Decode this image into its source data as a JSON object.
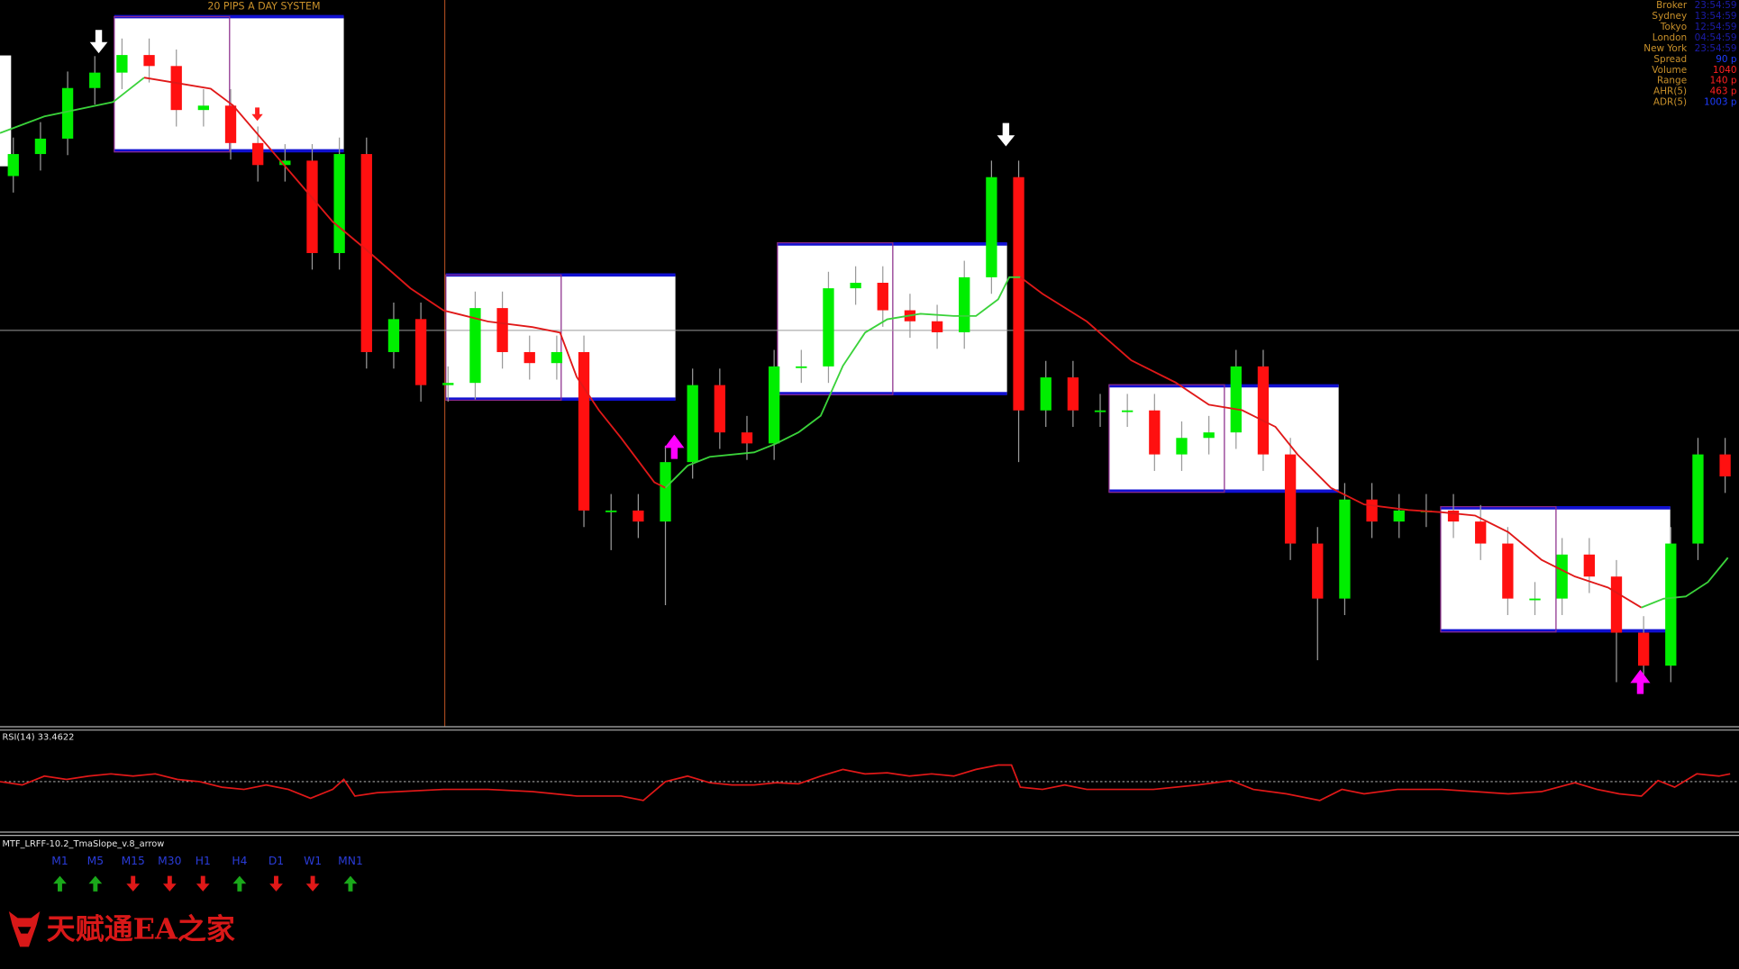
{
  "header": {
    "title": "20 PIPS A DAY SYSTEM"
  },
  "info_panel": [
    {
      "label": "Broker",
      "value": "23:54:59",
      "color": "#1c1ca8"
    },
    {
      "label": "Sydney",
      "value": "13:54:59",
      "color": "#1c1ca8"
    },
    {
      "label": "Tokyo",
      "value": "12:54:59",
      "color": "#1c1ca8"
    },
    {
      "label": "London",
      "value": "04:54:59",
      "color": "#1c1ca8"
    },
    {
      "label": "New York",
      "value": "23:54:59",
      "color": "#1c1ca8"
    },
    {
      "label": "Spread",
      "value": "90 p",
      "color": "#1e3cff"
    },
    {
      "label": "Volume",
      "value": "1040",
      "color": "#ff2020"
    },
    {
      "label": "Range",
      "value": "140 p",
      "color": "#ff2020"
    },
    {
      "label": "AHR(5)",
      "value": "463 p",
      "color": "#ff2020"
    },
    {
      "label": "ADR(5)",
      "value": "1003 p",
      "color": "#1e3cff"
    }
  ],
  "chart_data": {
    "type": "candlestick",
    "up_color": "#00ee00",
    "down_color": "#ff1010",
    "ylim": [
      34,
      100
    ],
    "open": [
      84,
      86,
      87.4,
      92,
      93.4,
      95,
      94,
      90,
      90.4,
      87,
      85,
      85.4,
      77,
      86,
      68,
      71,
      65,
      65.2,
      72,
      68,
      67,
      68,
      53.6,
      53.6,
      52.6,
      58,
      65,
      60.7,
      59.7,
      66.7,
      66.7,
      73.8,
      74.3,
      71.8,
      70.8,
      69.8,
      74.8,
      83.9,
      62.7,
      65.7,
      62.7,
      62.7,
      62.7,
      58.7,
      60.2,
      60.7,
      66.7,
      58.7,
      50.6,
      45.6,
      54.6,
      52.6,
      53.6,
      53.6,
      52.6,
      50.6,
      45.6,
      45.6,
      49.6,
      47.6,
      42.5,
      39.5,
      50.6,
      58.7
    ],
    "high": [
      87.5,
      88.9,
      93.5,
      94.9,
      96.5,
      96.5,
      95.5,
      91.9,
      91.9,
      88.5,
      86.9,
      86.9,
      87.5,
      87.5,
      72.5,
      72.5,
      66.7,
      73.5,
      73.5,
      69.5,
      69.5,
      69.5,
      55.1,
      55.1,
      59.5,
      66.5,
      66.5,
      62.2,
      68.2,
      68.2,
      75.3,
      75.8,
      75.8,
      73.3,
      72.3,
      76.3,
      85.4,
      85.4,
      67.2,
      67.2,
      64.2,
      64.2,
      64.2,
      61.7,
      62.2,
      68.2,
      68.2,
      60.2,
      52.1,
      56.1,
      56.1,
      55.1,
      55.1,
      55.1,
      54.1,
      52.1,
      47.1,
      51.1,
      51.1,
      49.1,
      44,
      52.1,
      60.2,
      60.2
    ],
    "low": [
      82.5,
      84.5,
      85.9,
      90.5,
      91.9,
      92.5,
      88.5,
      88.5,
      85.5,
      83.5,
      83.5,
      75.5,
      75.5,
      66.5,
      66.5,
      63.5,
      63.5,
      63.7,
      66.5,
      65.5,
      65.5,
      52.1,
      50,
      51.1,
      45,
      56.5,
      59.2,
      58.2,
      58.2,
      65.2,
      65.2,
      72.3,
      70.3,
      69.3,
      68.3,
      68.3,
      73.3,
      58,
      61.2,
      61.2,
      61.2,
      61.2,
      57.2,
      57.2,
      58.7,
      59.2,
      57.2,
      49.1,
      40,
      44.1,
      51.1,
      51.1,
      52.1,
      51.1,
      49.1,
      44.1,
      44.1,
      44.1,
      46.1,
      38,
      38,
      38,
      49.1,
      55.2
    ],
    "close": [
      86,
      87.4,
      92,
      93.4,
      95,
      94,
      90,
      90.4,
      87,
      85,
      85.4,
      77,
      86,
      68,
      71,
      65,
      65.2,
      72,
      68,
      67,
      68,
      53.6,
      53.6,
      52.6,
      58,
      65,
      60.7,
      59.7,
      66.7,
      66.7,
      73.8,
      74.3,
      71.8,
      70.8,
      69.8,
      74.8,
      83.9,
      62.7,
      65.7,
      62.7,
      62.7,
      62.7,
      58.7,
      60.2,
      60.7,
      66.7,
      58.7,
      50.6,
      45.6,
      54.6,
      52.6,
      53.6,
      53.6,
      52.6,
      50.6,
      45.6,
      45.6,
      49.6,
      47.6,
      42.5,
      39.5,
      50.6,
      58.7,
      56.7
    ]
  },
  "rsi": {
    "label": "RSI(14) 33.4622"
  },
  "mtf": {
    "title": "MTF_LRFF-10.2_TmaSlope_v.8_arrow",
    "timeframes": [
      {
        "label": "M1",
        "direction": "up"
      },
      {
        "label": "M5",
        "direction": "up"
      },
      {
        "label": "M15",
        "direction": "down"
      },
      {
        "label": "M30",
        "direction": "down"
      },
      {
        "label": "H1",
        "direction": "down"
      },
      {
        "label": "H4",
        "direction": "up"
      },
      {
        "label": "D1",
        "direction": "down"
      },
      {
        "label": "W1",
        "direction": "down"
      },
      {
        "label": "MN1",
        "direction": "up"
      }
    ]
  },
  "watermark": "天赋通EA之家"
}
